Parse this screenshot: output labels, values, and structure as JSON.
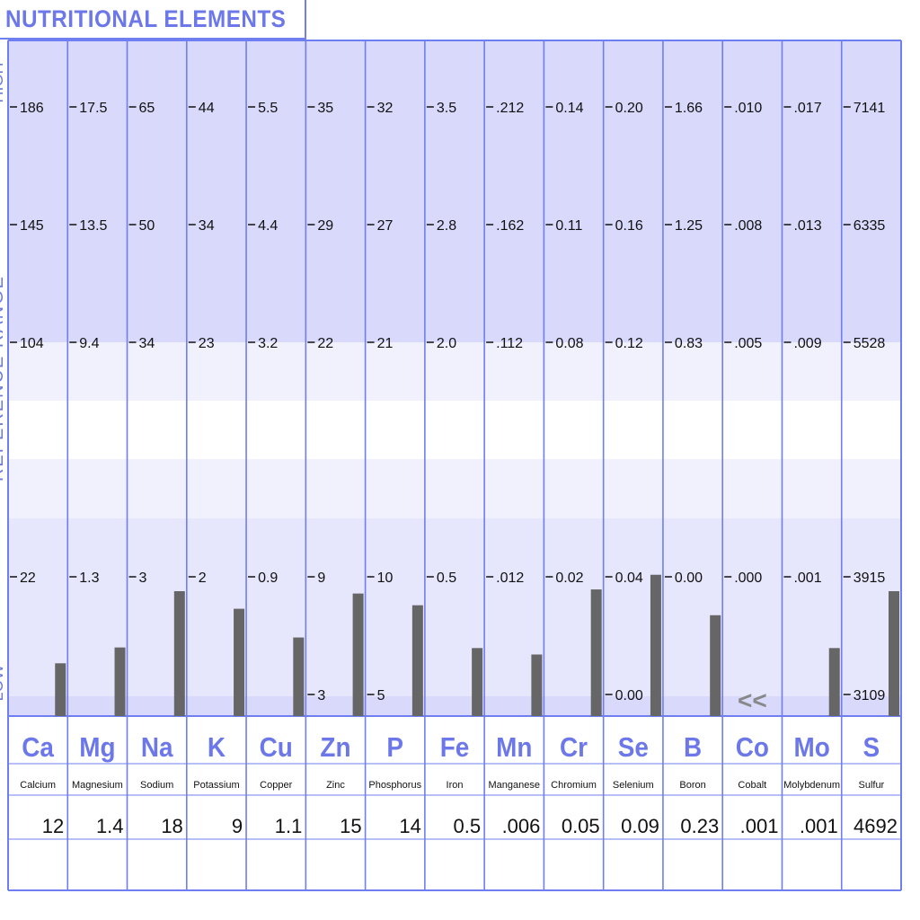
{
  "title": "NUTRITIONAL ELEMENTS",
  "chart_data": {
    "type": "bar",
    "title": "NUTRITIONAL ELEMENTS",
    "ylabel": "REFERENCE RANGE",
    "yband_labels": [
      "LOW",
      "HIGH"
    ],
    "elements": [
      {
        "symbol": "Ca",
        "name": "Calcium",
        "result": "12",
        "scale_top": [
          "186",
          "145",
          "104"
        ],
        "scale_low": "22",
        "scale_bottom": "",
        "bar_level": 0.45
      },
      {
        "symbol": "Mg",
        "name": "Magnesium",
        "result": "1.4",
        "scale_top": [
          "17.5",
          "13.5",
          "9.4"
        ],
        "scale_low": "1.3",
        "scale_bottom": "",
        "bar_level": 0.585
      },
      {
        "symbol": "Na",
        "name": "Sodium",
        "result": "18",
        "scale_top": [
          "65",
          "50",
          "34"
        ],
        "scale_low": "3",
        "scale_bottom": "",
        "bar_level": 1.065
      },
      {
        "symbol": "K",
        "name": "Potassium",
        "result": "9",
        "scale_top": [
          "44",
          "34",
          "23"
        ],
        "scale_low": "2",
        "scale_bottom": "",
        "bar_level": 0.915
      },
      {
        "symbol": "Cu",
        "name": "Copper",
        "result": "1.1",
        "scale_top": [
          "5.5",
          "4.4",
          "3.2"
        ],
        "scale_low": "0.9",
        "scale_bottom": "",
        "bar_level": 0.67
      },
      {
        "symbol": "Zn",
        "name": "Zinc",
        "result": "15",
        "scale_top": [
          "35",
          "29",
          "22"
        ],
        "scale_low": "9",
        "scale_bottom": "3",
        "bar_level": 1.045
      },
      {
        "symbol": "P",
        "name": "Phosphorus",
        "result": "14",
        "scale_top": [
          "32",
          "27",
          "21"
        ],
        "scale_low": "10",
        "scale_bottom": "5",
        "bar_level": 0.945
      },
      {
        "symbol": "Fe",
        "name": "Iron",
        "result": "0.5",
        "scale_top": [
          "3.5",
          "2.8",
          "2.0"
        ],
        "scale_low": "0.5",
        "scale_bottom": "",
        "bar_level": 0.58
      },
      {
        "symbol": "Mn",
        "name": "Manganese",
        "result": ".006",
        "scale_top": [
          ".212",
          ".162",
          ".112"
        ],
        "scale_low": ".012",
        "scale_bottom": "",
        "bar_level": 0.525
      },
      {
        "symbol": "Cr",
        "name": "Chromium",
        "result": "0.05",
        "scale_top": [
          "0.14",
          "0.11",
          "0.08"
        ],
        "scale_low": "0.02",
        "scale_bottom": "",
        "bar_level": 1.08
      },
      {
        "symbol": "Se",
        "name": "Selenium",
        "result": "0.09",
        "scale_top": [
          "0.20",
          "0.16",
          "0.12"
        ],
        "scale_low": "0.04",
        "scale_bottom": "0.00",
        "bar_level": 1.205
      },
      {
        "symbol": "B",
        "name": "Boron",
        "result": "0.23",
        "scale_top": [
          "1.66",
          "1.25",
          "0.83"
        ],
        "scale_low": "0.00",
        "scale_bottom": "",
        "bar_level": 0.86
      },
      {
        "symbol": "Co",
        "name": "Cobalt",
        "result": ".001",
        "scale_top": [
          ".010",
          ".008",
          ".005"
        ],
        "scale_low": ".000",
        "scale_bottom": "",
        "bar_level": 0,
        "off_scale_marker": "<<"
      },
      {
        "symbol": "Mo",
        "name": "Molybdenum",
        "result": ".001",
        "scale_top": [
          ".017",
          ".013",
          ".009"
        ],
        "scale_low": ".001",
        "scale_bottom": "",
        "bar_level": 0.58
      },
      {
        "symbol": "S",
        "name": "Sulfur",
        "result": "4692",
        "scale_top": [
          "7141",
          "6335",
          "5528"
        ],
        "scale_low": "3915",
        "scale_bottom": "3109",
        "bar_level": 1.065
      }
    ],
    "colors": {
      "grid": "#6f7ef0",
      "band_dark": "#d9d9fb",
      "band_mid": "#e6e6fc",
      "band_light": "#f1f1fd",
      "bar": "#666666",
      "symbol": "#6c78ea",
      "text": "#111111",
      "marker": "#888888"
    }
  }
}
